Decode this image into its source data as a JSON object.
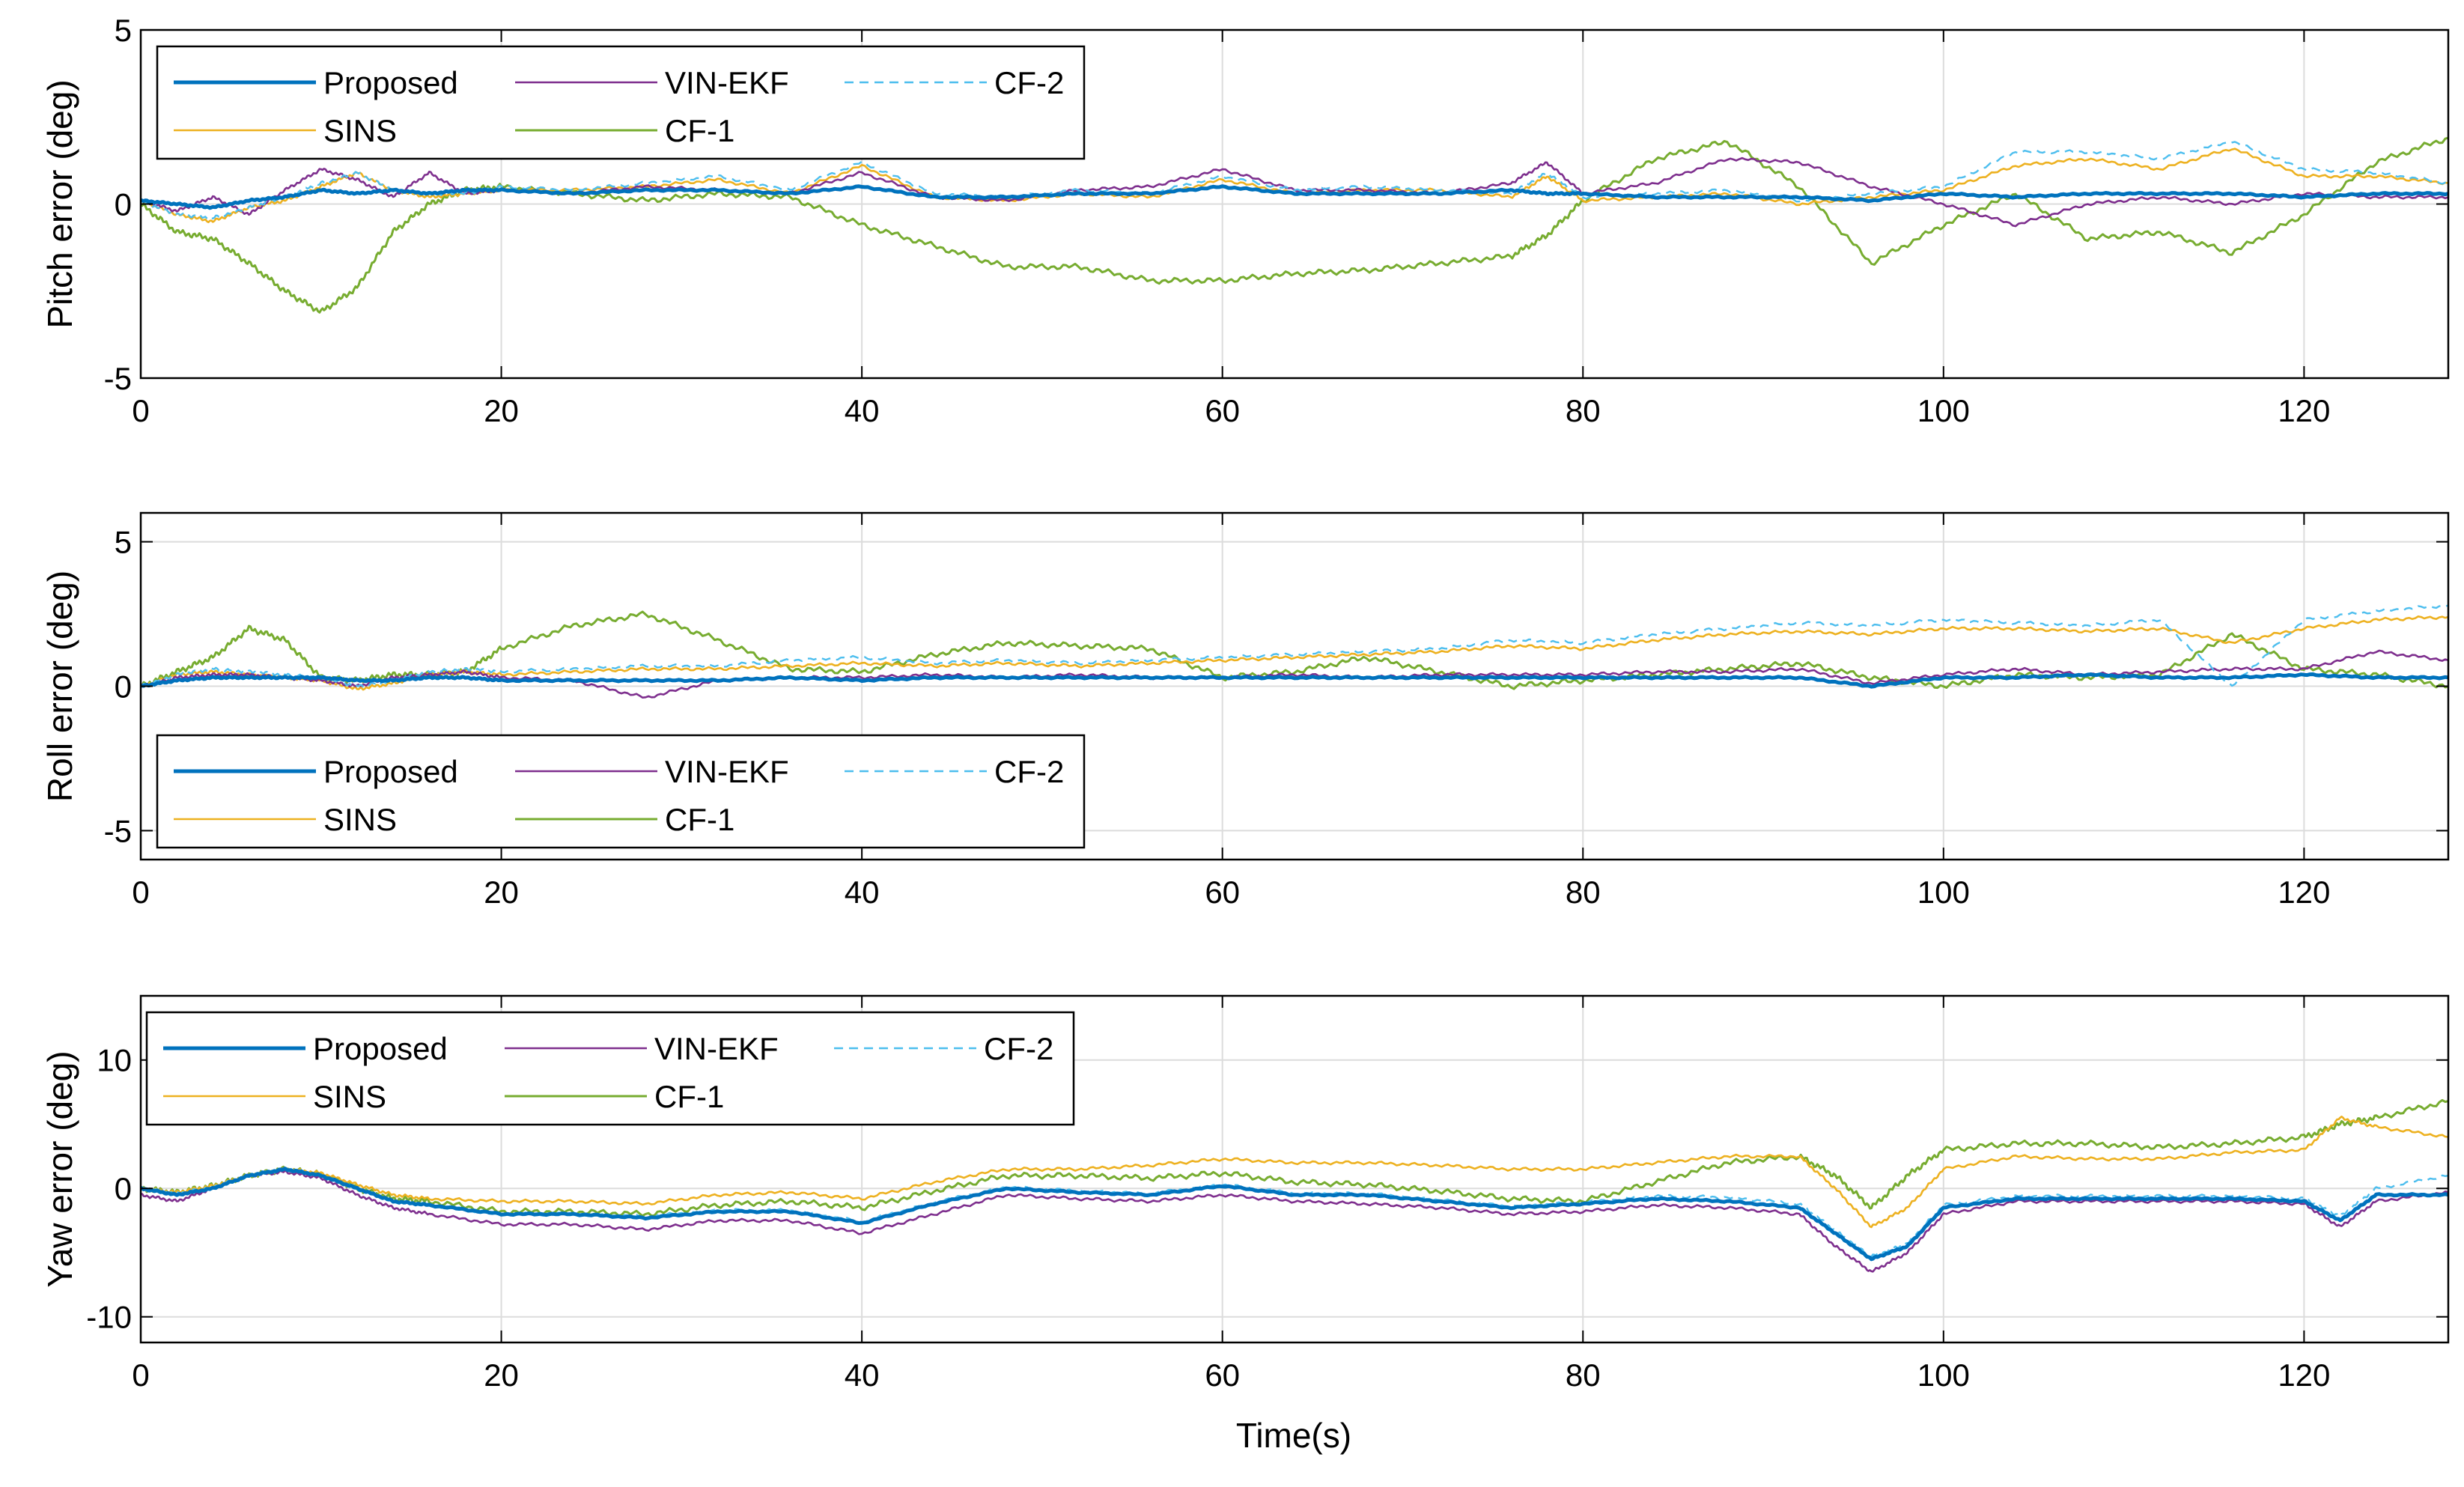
{
  "figure": {
    "xlabel": "Time(s)"
  },
  "colors": {
    "Proposed": "#0072BD",
    "SINS": "#EDB120",
    "VIN-EKF": "#7E2F8E",
    "CF-1": "#77AC30",
    "CF-2": "#4DBEEE",
    "grid": "#dcdcdc",
    "axis": "#000000"
  },
  "chart_data": [
    {
      "type": "line",
      "ylabel": "Pitch error (deg)",
      "xlim": [
        0,
        128
      ],
      "ylim": [
        -5,
        5
      ],
      "xticks": [
        0,
        20,
        40,
        60,
        80,
        100,
        120
      ],
      "xtick_labels": [
        "0",
        "20",
        "40",
        "60",
        "80",
        "100",
        "120"
      ],
      "yticks": [
        -5,
        0,
        5
      ],
      "ytick_labels": [
        "-5",
        "0",
        "5"
      ],
      "legend": {
        "location": "top-left",
        "entries": [
          "Proposed",
          "VIN-EKF",
          "CF-2",
          "SINS",
          "CF-1"
        ]
      },
      "x": [
        0,
        2,
        4,
        6,
        8,
        10,
        12,
        14,
        16,
        18,
        20,
        24,
        28,
        32,
        36,
        40,
        44,
        48,
        52,
        56,
        60,
        64,
        68,
        72,
        76,
        78,
        80,
        84,
        88,
        92,
        96,
        100,
        104,
        108,
        112,
        116,
        120,
        124,
        128
      ],
      "series": [
        {
          "name": "Proposed",
          "values": [
            0.1,
            0.0,
            -0.1,
            0.1,
            0.2,
            0.4,
            0.3,
            0.4,
            0.3,
            0.4,
            0.4,
            0.3,
            0.4,
            0.4,
            0.3,
            0.5,
            0.2,
            0.2,
            0.3,
            0.3,
            0.5,
            0.3,
            0.3,
            0.3,
            0.4,
            0.3,
            0.3,
            0.2,
            0.2,
            0.2,
            0.1,
            0.3,
            0.2,
            0.3,
            0.3,
            0.3,
            0.2,
            0.3,
            0.3
          ]
        },
        {
          "name": "VIN-EKF",
          "values": [
            0.1,
            -0.2,
            0.2,
            -0.3,
            0.4,
            1.0,
            0.7,
            0.2,
            0.9,
            0.3,
            0.4,
            0.3,
            0.5,
            0.4,
            0.3,
            0.9,
            0.2,
            0.1,
            0.4,
            0.5,
            1.0,
            0.4,
            0.4,
            0.3,
            0.6,
            1.2,
            0.3,
            0.6,
            1.3,
            1.2,
            0.5,
            0.0,
            -0.6,
            0.0,
            0.2,
            0.0,
            0.3,
            0.2,
            0.2
          ]
        },
        {
          "name": "SINS",
          "values": [
            0.1,
            -0.3,
            -0.5,
            -0.1,
            0.1,
            0.5,
            0.9,
            0.4,
            0.2,
            0.3,
            0.4,
            0.4,
            0.5,
            0.7,
            0.3,
            1.1,
            0.2,
            0.1,
            0.3,
            0.2,
            0.7,
            0.3,
            0.4,
            0.4,
            0.2,
            0.8,
            0.1,
            0.2,
            0.3,
            0.0,
            0.2,
            0.4,
            1.1,
            1.3,
            1.0,
            1.6,
            0.8,
            0.8,
            0.6
          ]
        },
        {
          "name": "CF-1",
          "values": [
            0.0,
            -0.8,
            -1.0,
            -1.7,
            -2.5,
            -3.1,
            -2.4,
            -0.8,
            0.0,
            0.4,
            0.5,
            0.3,
            0.1,
            0.3,
            0.2,
            -0.6,
            -1.2,
            -1.8,
            -1.8,
            -2.2,
            -2.2,
            -2.0,
            -1.9,
            -1.7,
            -1.5,
            -0.9,
            0.1,
            1.3,
            1.8,
            0.5,
            -1.7,
            -0.6,
            0.3,
            -1.0,
            -0.8,
            -1.4,
            -0.3,
            1.2,
            1.9
          ]
        },
        {
          "name": "CF-2",
          "values": [
            0.1,
            -0.3,
            -0.4,
            -0.1,
            0.2,
            0.6,
            0.9,
            0.4,
            0.3,
            0.3,
            0.5,
            0.4,
            0.6,
            0.8,
            0.4,
            1.2,
            0.3,
            0.2,
            0.4,
            0.3,
            0.8,
            0.4,
            0.5,
            0.4,
            0.3,
            0.9,
            0.2,
            0.3,
            0.4,
            0.1,
            0.3,
            0.5,
            1.5,
            1.5,
            1.3,
            1.8,
            1.0,
            0.9,
            0.6
          ]
        }
      ]
    },
    {
      "type": "line",
      "ylabel": "Roll error (deg)",
      "xlim": [
        0,
        128
      ],
      "ylim": [
        -6,
        6
      ],
      "xticks": [
        0,
        20,
        40,
        60,
        80,
        100,
        120
      ],
      "xtick_labels": [
        "0",
        "20",
        "40",
        "60",
        "80",
        "100",
        "120"
      ],
      "yticks": [
        -5,
        0,
        5
      ],
      "ytick_labels": [
        "-5",
        "0",
        "5"
      ],
      "legend": {
        "location": "bottom-left",
        "entries": [
          "Proposed",
          "VIN-EKF",
          "CF-2",
          "SINS",
          "CF-1"
        ]
      },
      "x": [
        0,
        2,
        4,
        6,
        8,
        10,
        12,
        14,
        16,
        18,
        20,
        24,
        28,
        32,
        36,
        40,
        44,
        48,
        52,
        56,
        60,
        64,
        68,
        72,
        76,
        80,
        84,
        88,
        92,
        96,
        100,
        104,
        108,
        112,
        116,
        120,
        124,
        128
      ],
      "series": [
        {
          "name": "Proposed",
          "values": [
            0.0,
            0.2,
            0.3,
            0.3,
            0.3,
            0.3,
            0.2,
            0.2,
            0.3,
            0.3,
            0.2,
            0.2,
            0.2,
            0.2,
            0.3,
            0.2,
            0.3,
            0.3,
            0.3,
            0.3,
            0.3,
            0.3,
            0.3,
            0.3,
            0.3,
            0.3,
            0.3,
            0.3,
            0.3,
            0.0,
            0.3,
            0.3,
            0.4,
            0.3,
            0.3,
            0.4,
            0.3,
            0.3
          ]
        },
        {
          "name": "VIN-EKF",
          "values": [
            0.0,
            0.3,
            0.4,
            0.4,
            0.3,
            0.2,
            0.0,
            0.3,
            0.4,
            0.5,
            0.3,
            0.2,
            -0.4,
            0.2,
            0.3,
            0.3,
            0.4,
            0.3,
            0.4,
            0.3,
            0.3,
            0.4,
            0.3,
            0.4,
            0.4,
            0.4,
            0.5,
            0.5,
            0.6,
            0.1,
            0.4,
            0.6,
            0.4,
            0.5,
            0.6,
            0.6,
            1.2,
            0.9
          ]
        },
        {
          "name": "SINS",
          "values": [
            0.0,
            0.4,
            0.5,
            0.4,
            0.3,
            0.2,
            -0.1,
            0.1,
            0.4,
            0.5,
            0.4,
            0.5,
            0.6,
            0.6,
            0.7,
            0.8,
            0.7,
            0.8,
            0.7,
            0.8,
            0.9,
            1.0,
            1.1,
            1.2,
            1.4,
            1.3,
            1.6,
            1.8,
            1.9,
            1.8,
            2.0,
            2.0,
            1.9,
            2.0,
            1.5,
            2.0,
            2.3,
            2.4
          ]
        },
        {
          "name": "CF-1",
          "values": [
            0.0,
            0.5,
            1.0,
            2.0,
            1.6,
            0.3,
            0.2,
            0.4,
            0.4,
            0.5,
            1.3,
            2.1,
            2.5,
            1.6,
            0.6,
            0.5,
            1.1,
            1.5,
            1.4,
            1.3,
            0.3,
            0.5,
            1.0,
            0.5,
            0.0,
            0.2,
            0.4,
            0.6,
            0.8,
            0.3,
            0.0,
            0.4,
            0.3,
            0.4,
            1.8,
            0.6,
            0.4,
            0.0
          ]
        },
        {
          "name": "CF-2",
          "values": [
            0.0,
            0.4,
            0.6,
            0.5,
            0.4,
            0.3,
            0.0,
            0.2,
            0.5,
            0.6,
            0.5,
            0.6,
            0.7,
            0.7,
            0.9,
            1.0,
            0.8,
            0.9,
            0.8,
            0.9,
            1.0,
            1.1,
            1.2,
            1.3,
            1.6,
            1.5,
            1.8,
            2.0,
            2.2,
            2.1,
            2.3,
            2.2,
            2.1,
            2.3,
            0.0,
            2.3,
            2.6,
            2.8
          ]
        }
      ]
    },
    {
      "type": "line",
      "ylabel": "Yaw error (deg)",
      "xlim": [
        0,
        128
      ],
      "ylim": [
        -12,
        15
      ],
      "xticks": [
        0,
        20,
        40,
        60,
        80,
        100,
        120
      ],
      "xtick_labels": [
        "0",
        "20",
        "40",
        "60",
        "80",
        "100",
        "120"
      ],
      "yticks": [
        -10,
        0,
        10
      ],
      "ytick_labels": [
        "-10",
        "0",
        "10"
      ],
      "legend": {
        "location": "top-left",
        "entries": [
          "Proposed",
          "VIN-EKF",
          "CF-2",
          "SINS",
          "CF-1"
        ]
      },
      "x": [
        0,
        2,
        4,
        6,
        8,
        10,
        12,
        14,
        16,
        20,
        24,
        28,
        32,
        36,
        40,
        44,
        48,
        52,
        56,
        60,
        64,
        68,
        72,
        76,
        80,
        84,
        88,
        92,
        94,
        96,
        98,
        100,
        104,
        108,
        112,
        116,
        120,
        122,
        124,
        128
      ],
      "series": [
        {
          "name": "Proposed",
          "values": [
            0.0,
            -0.5,
            0.0,
            1.0,
            1.5,
            1.0,
            0.0,
            -1.0,
            -1.3,
            -2.0,
            -2.0,
            -2.3,
            -1.8,
            -1.8,
            -2.7,
            -1.2,
            0.0,
            -0.3,
            -0.5,
            0.2,
            -0.5,
            -0.5,
            -1.0,
            -1.5,
            -1.2,
            -0.8,
            -1.0,
            -1.5,
            -3.5,
            -5.5,
            -4.5,
            -1.5,
            -0.8,
            -0.8,
            -0.8,
            -0.8,
            -1.0,
            -2.5,
            -0.5,
            -0.5
          ]
        },
        {
          "name": "VIN-EKF",
          "values": [
            -0.5,
            -1.0,
            0.0,
            1.0,
            1.3,
            0.8,
            -0.5,
            -1.5,
            -2.0,
            -2.8,
            -2.8,
            -3.2,
            -2.5,
            -2.5,
            -3.5,
            -2.0,
            -0.5,
            -0.8,
            -1.0,
            -0.5,
            -1.0,
            -1.2,
            -1.5,
            -2.0,
            -1.8,
            -1.3,
            -1.5,
            -2.0,
            -4.5,
            -6.5,
            -5.0,
            -2.0,
            -1.0,
            -1.0,
            -1.0,
            -1.0,
            -1.2,
            -3.0,
            -1.0,
            -0.3
          ]
        },
        {
          "name": "SINS",
          "values": [
            0.0,
            -0.3,
            0.2,
            1.0,
            1.5,
            1.2,
            0.3,
            -0.5,
            -0.8,
            -1.0,
            -1.0,
            -1.2,
            -0.5,
            -0.3,
            -0.8,
            0.5,
            1.5,
            1.5,
            1.8,
            2.3,
            2.0,
            2.0,
            1.8,
            1.5,
            1.5,
            2.0,
            2.5,
            2.5,
            0.0,
            -3.0,
            -1.5,
            1.5,
            2.5,
            2.3,
            2.3,
            2.8,
            3.0,
            5.5,
            4.8,
            4.0
          ]
        },
        {
          "name": "CF-1",
          "values": [
            0.0,
            -0.3,
            0.2,
            1.0,
            1.5,
            1.1,
            0.0,
            -0.8,
            -1.0,
            -1.8,
            -1.8,
            -2.0,
            -1.3,
            -1.0,
            -1.5,
            -0.2,
            1.0,
            1.0,
            0.8,
            1.2,
            0.5,
            0.3,
            -0.2,
            -0.8,
            -1.0,
            0.5,
            2.0,
            2.5,
            1.0,
            -1.5,
            1.0,
            3.0,
            3.5,
            3.5,
            3.2,
            3.5,
            4.0,
            5.0,
            5.5,
            6.8
          ]
        },
        {
          "name": "CF-2",
          "values": [
            0.0,
            -0.4,
            0.1,
            1.0,
            1.5,
            1.0,
            0.0,
            -1.0,
            -1.3,
            -2.0,
            -2.0,
            -2.2,
            -1.7,
            -1.7,
            -2.6,
            -1.1,
            0.1,
            -0.2,
            -0.4,
            0.3,
            -0.4,
            -0.4,
            -0.9,
            -1.4,
            -1.1,
            -0.6,
            -0.7,
            -1.2,
            -3.3,
            -5.3,
            -4.3,
            -1.3,
            -0.6,
            -0.6,
            -0.6,
            -0.6,
            -0.8,
            -2.2,
            0.0,
            1.0
          ]
        }
      ]
    }
  ]
}
